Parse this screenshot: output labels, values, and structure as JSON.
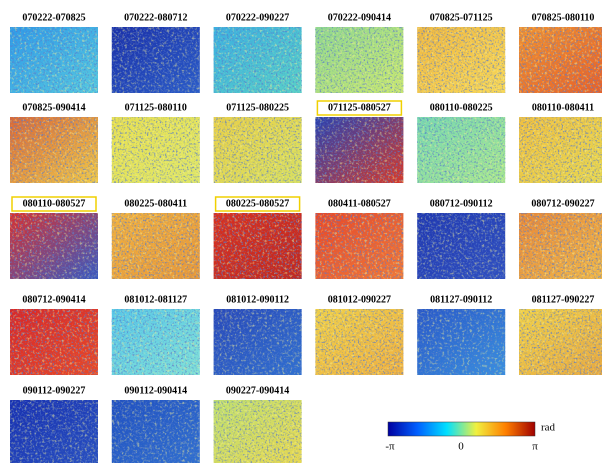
{
  "panels": [
    {
      "label": "070222-070825",
      "colors": [
        "#2f9be8",
        "#55c8e0"
      ],
      "highlight": false
    },
    {
      "label": "070222-080712",
      "colors": [
        "#1a2fa8",
        "#2a5cc8"
      ],
      "highlight": false
    },
    {
      "label": "070222-090227",
      "colors": [
        "#3cb0e0",
        "#58d0c8"
      ],
      "highlight": false
    },
    {
      "label": "070222-090414",
      "colors": [
        "#90d890",
        "#c8e870"
      ],
      "highlight": false
    },
    {
      "label": "070825-071125",
      "colors": [
        "#f0b840",
        "#f8d858"
      ],
      "highlight": false
    },
    {
      "label": "070825-080110",
      "colors": [
        "#f09030",
        "#e86028"
      ],
      "highlight": false
    },
    {
      "label": "070825-090414",
      "colors": [
        "#d86838",
        "#f0c848"
      ],
      "highlight": false
    },
    {
      "label": "071125-080110",
      "colors": [
        "#e8e050",
        "#e0e868"
      ],
      "highlight": false
    },
    {
      "label": "071125-080225",
      "colors": [
        "#e8d048",
        "#d8e060"
      ],
      "highlight": false
    },
    {
      "label": "071125-080527",
      "colors": [
        "#2840b0",
        "#d83828"
      ],
      "highlight": true
    },
    {
      "label": "080110-080225",
      "colors": [
        "#78d8b0",
        "#a8e890"
      ],
      "highlight": false
    },
    {
      "label": "080110-080411",
      "colors": [
        "#f0c040",
        "#e8d850"
      ],
      "highlight": false
    },
    {
      "label": "080110-080527",
      "colors": [
        "#d83030",
        "#3858c0"
      ],
      "highlight": true
    },
    {
      "label": "080225-080411",
      "colors": [
        "#f0b040",
        "#e89838"
      ],
      "highlight": false
    },
    {
      "label": "080225-080527",
      "colors": [
        "#d83020",
        "#c02820"
      ],
      "highlight": true
    },
    {
      "label": "080411-080527",
      "colors": [
        "#e84828",
        "#f07838"
      ],
      "highlight": false
    },
    {
      "label": "080712-090112",
      "colors": [
        "#2038b0",
        "#3050c0"
      ],
      "highlight": false
    },
    {
      "label": "080712-090227",
      "colors": [
        "#e88838",
        "#f0b848"
      ],
      "highlight": false
    },
    {
      "label": "080712-090414",
      "colors": [
        "#d82828",
        "#e84828"
      ],
      "highlight": false
    },
    {
      "label": "081012-081127",
      "colors": [
        "#58c8e8",
        "#80e0d8"
      ],
      "highlight": false
    },
    {
      "label": "081012-090112",
      "colors": [
        "#2848b8",
        "#3070d0"
      ],
      "highlight": false
    },
    {
      "label": "081012-090227",
      "colors": [
        "#f0d048",
        "#f0b040"
      ],
      "highlight": false
    },
    {
      "label": "081127-090112",
      "colors": [
        "#2858c8",
        "#3890e0"
      ],
      "highlight": false
    },
    {
      "label": "081127-090227",
      "colors": [
        "#f0d048",
        "#e8a840"
      ],
      "highlight": false
    },
    {
      "label": "090112-090227",
      "colors": [
        "#1830b0",
        "#2850c0"
      ],
      "highlight": false
    },
    {
      "label": "090112-090414",
      "colors": [
        "#2050c0",
        "#3070d0"
      ],
      "highlight": false
    },
    {
      "label": "090227-090414",
      "colors": [
        "#c0e070",
        "#e8d850"
      ],
      "highlight": false
    }
  ],
  "colorbar": {
    "min_label": "-π",
    "mid_label": "0",
    "max_label": "π",
    "unit": "rad",
    "colors": [
      "#0000a0",
      "#0060ff",
      "#00e0ff",
      "#f0f040",
      "#ff8000",
      "#a00000"
    ]
  }
}
